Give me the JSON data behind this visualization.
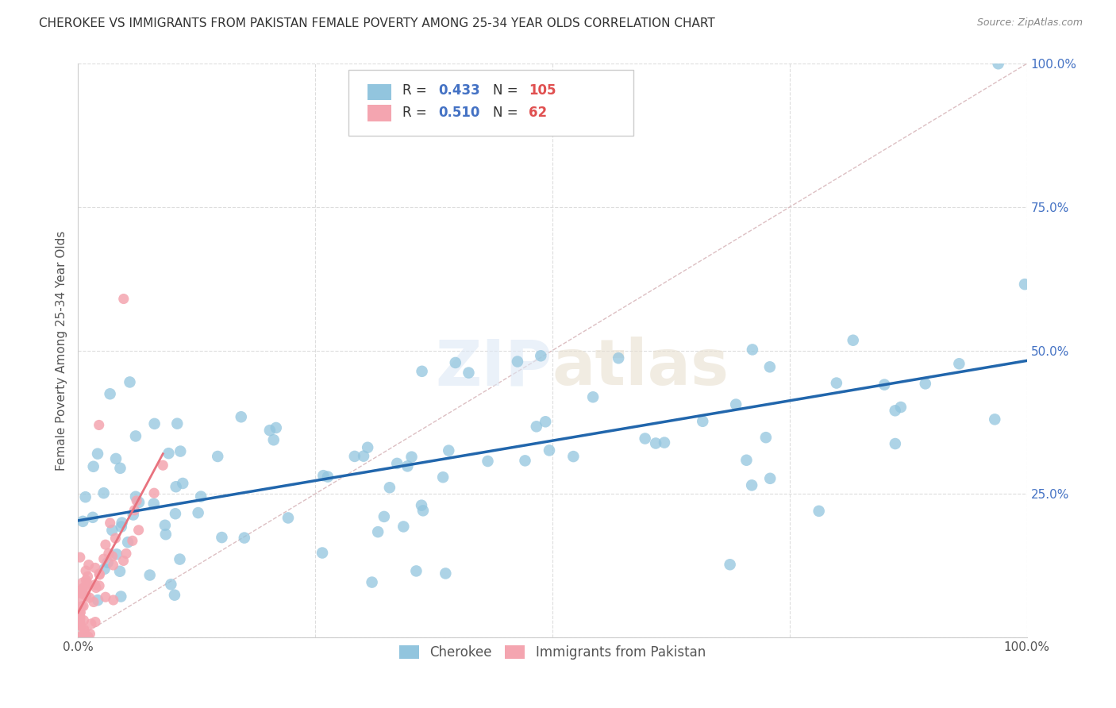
{
  "title": "CHEROKEE VS IMMIGRANTS FROM PAKISTAN FEMALE POVERTY AMONG 25-34 YEAR OLDS CORRELATION CHART",
  "source": "Source: ZipAtlas.com",
  "ylabel": "Female Poverty Among 25-34 Year Olds",
  "xlim": [
    0,
    1
  ],
  "ylim": [
    0,
    1
  ],
  "ytick_values": [
    0.0,
    0.25,
    0.5,
    0.75,
    1.0
  ],
  "xtick_values": [
    0.0,
    0.25,
    0.5,
    0.75,
    1.0
  ],
  "cherokee_color": "#92c5de",
  "pakistan_color": "#f4a5b0",
  "trend_cherokee_color": "#2166ac",
  "trend_pakistan_color": "#e8727e",
  "diagonal_color": "#d9b8bc",
  "R_cherokee": 0.433,
  "N_cherokee": 105,
  "R_pakistan": 0.51,
  "N_pakistan": 62,
  "legend_label_cherokee": "Cherokee",
  "legend_label_pakistan": "Immigrants from Pakistan",
  "watermark_zip": "ZIP",
  "watermark_atlas": "atlas",
  "background_color": "#ffffff",
  "grid_color": "#dddddd",
  "title_color": "#333333",
  "R_color": "#333333",
  "RN_value_color": "#4472c4",
  "N_count_color": "#e05050",
  "ylabel_color": "#555555",
  "ytick_color": "#4472c4",
  "xtick_color": "#555555",
  "source_color": "#888888"
}
